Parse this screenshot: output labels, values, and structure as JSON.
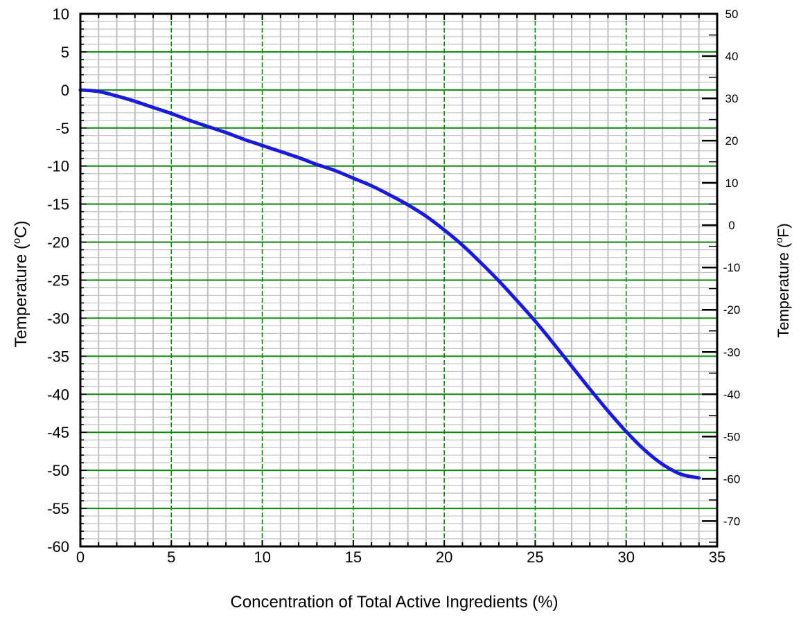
{
  "chart_data": {
    "type": "line",
    "xlabel": "Concentration of Total Active Ingredients (%)",
    "ylabel": "Temperature (°C)",
    "ylabel_parts": {
      "prefix": "Temperature (",
      "sup": "o",
      "unit": "C)"
    },
    "y2label": "Temperature (°F)",
    "y2label_parts": {
      "prefix": "Temperature (",
      "sup": "o",
      "unit": "F)"
    },
    "xlim": [
      0,
      35
    ],
    "ylim": [
      -60,
      10
    ],
    "y2lim": [
      -76,
      50
    ],
    "x_ticks": [
      0,
      5,
      10,
      15,
      20,
      25,
      30,
      35
    ],
    "y_ticks": [
      10,
      5,
      0,
      -5,
      -10,
      -15,
      -20,
      -25,
      -30,
      -35,
      -40,
      -45,
      -50,
      -55,
      -60
    ],
    "y2_ticks": [
      50,
      40,
      30,
      20,
      10,
      0,
      -10,
      -20,
      -30,
      -40,
      -50,
      -60,
      -70
    ],
    "grid": true,
    "colors": {
      "line": "#1a1adb",
      "major_grid": "#0a8a0a",
      "minor_grid": "#c0c0c0"
    },
    "series": [
      {
        "x": [
          0,
          1,
          2,
          3,
          4,
          5,
          6,
          7,
          8,
          9,
          10,
          11,
          12,
          13,
          14,
          15,
          16,
          17,
          18,
          19,
          20,
          21,
          22,
          23,
          24,
          25,
          26,
          27,
          28,
          29,
          30,
          31,
          32,
          33,
          34
        ],
        "y": [
          0,
          -0.2,
          -0.8,
          -1.5,
          -2.3,
          -3.1,
          -4.0,
          -4.8,
          -5.6,
          -6.5,
          -7.3,
          -8.1,
          -8.9,
          -9.8,
          -10.6,
          -11.6,
          -12.6,
          -13.8,
          -15.1,
          -16.6,
          -18.4,
          -20.4,
          -22.7,
          -25.1,
          -27.7,
          -30.4,
          -33.3,
          -36.3,
          -39.3,
          -42.2,
          -44.9,
          -47.3,
          -49.2,
          -50.5,
          -51.0
        ]
      }
    ]
  }
}
